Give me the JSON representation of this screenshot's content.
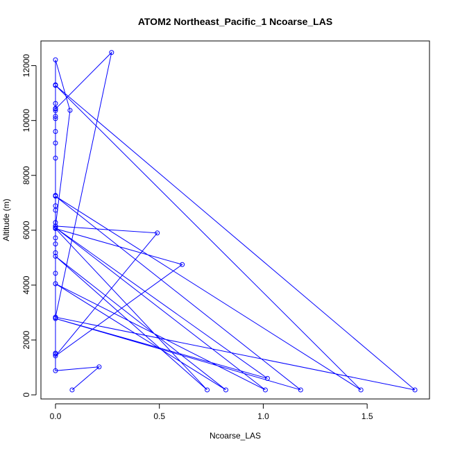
{
  "chart_data": {
    "type": "line",
    "title": "ATOM2 Northeast_Pacific_1 Ncoarse_LAS",
    "xlabel": "Ncoarse_LAS",
    "ylabel": "Altitude (m)",
    "xlim": [
      -0.07,
      1.8
    ],
    "ylim": [
      -150,
      12900
    ],
    "xticks": [
      0.0,
      0.5,
      1.0,
      1.5
    ],
    "xtick_labels": [
      "0.0",
      "0.5",
      "1.0",
      "1.5"
    ],
    "yticks": [
      0,
      2000,
      4000,
      6000,
      8000,
      10000,
      12000
    ],
    "ytick_labels": [
      "0",
      "2000",
      "4000",
      "6000",
      "8000",
      "10000",
      "12000"
    ],
    "grid": false,
    "marker": "open-circle",
    "colors": {
      "series": "#0000ff",
      "axis": "#000000"
    },
    "series": [
      {
        "x": [
          0.08,
          0.21,
          0.0,
          0.0,
          0.0,
          0.0,
          0.0,
          0.0,
          0.0,
          0.0,
          0.0,
          0.0,
          0.0,
          0.0,
          0.0,
          0.0,
          0.0,
          0.0,
          0.0,
          0.0,
          0.0,
          0.0,
          0.0,
          0.0,
          0.0,
          0.0,
          0.0,
          0.0,
          0.0,
          0.0,
          0.07,
          0.0,
          0.49,
          0.0,
          0.61,
          0.0,
          0.73,
          0.0,
          0.82,
          0.0,
          1.01,
          0.0,
          1.02,
          0.0,
          1.18,
          0.0,
          1.47,
          0.0,
          1.73,
          0.0,
          0.27,
          0.0
        ],
        "y": [
          180,
          1020,
          880,
          1480,
          1520,
          2820,
          2830,
          4050,
          4430,
          5180,
          5500,
          5720,
          6080,
          6150,
          6280,
          6730,
          6890,
          7250,
          7270,
          8630,
          9180,
          9600,
          10070,
          10150,
          10360,
          10440,
          10620,
          11280,
          11300,
          12210,
          10370,
          6150,
          5900,
          1420,
          4750,
          6060,
          180,
          5050,
          180,
          4050,
          180,
          6090,
          600,
          2780,
          180,
          7240,
          180,
          11280,
          180,
          2830,
          12480,
          10420
        ]
      }
    ]
  }
}
